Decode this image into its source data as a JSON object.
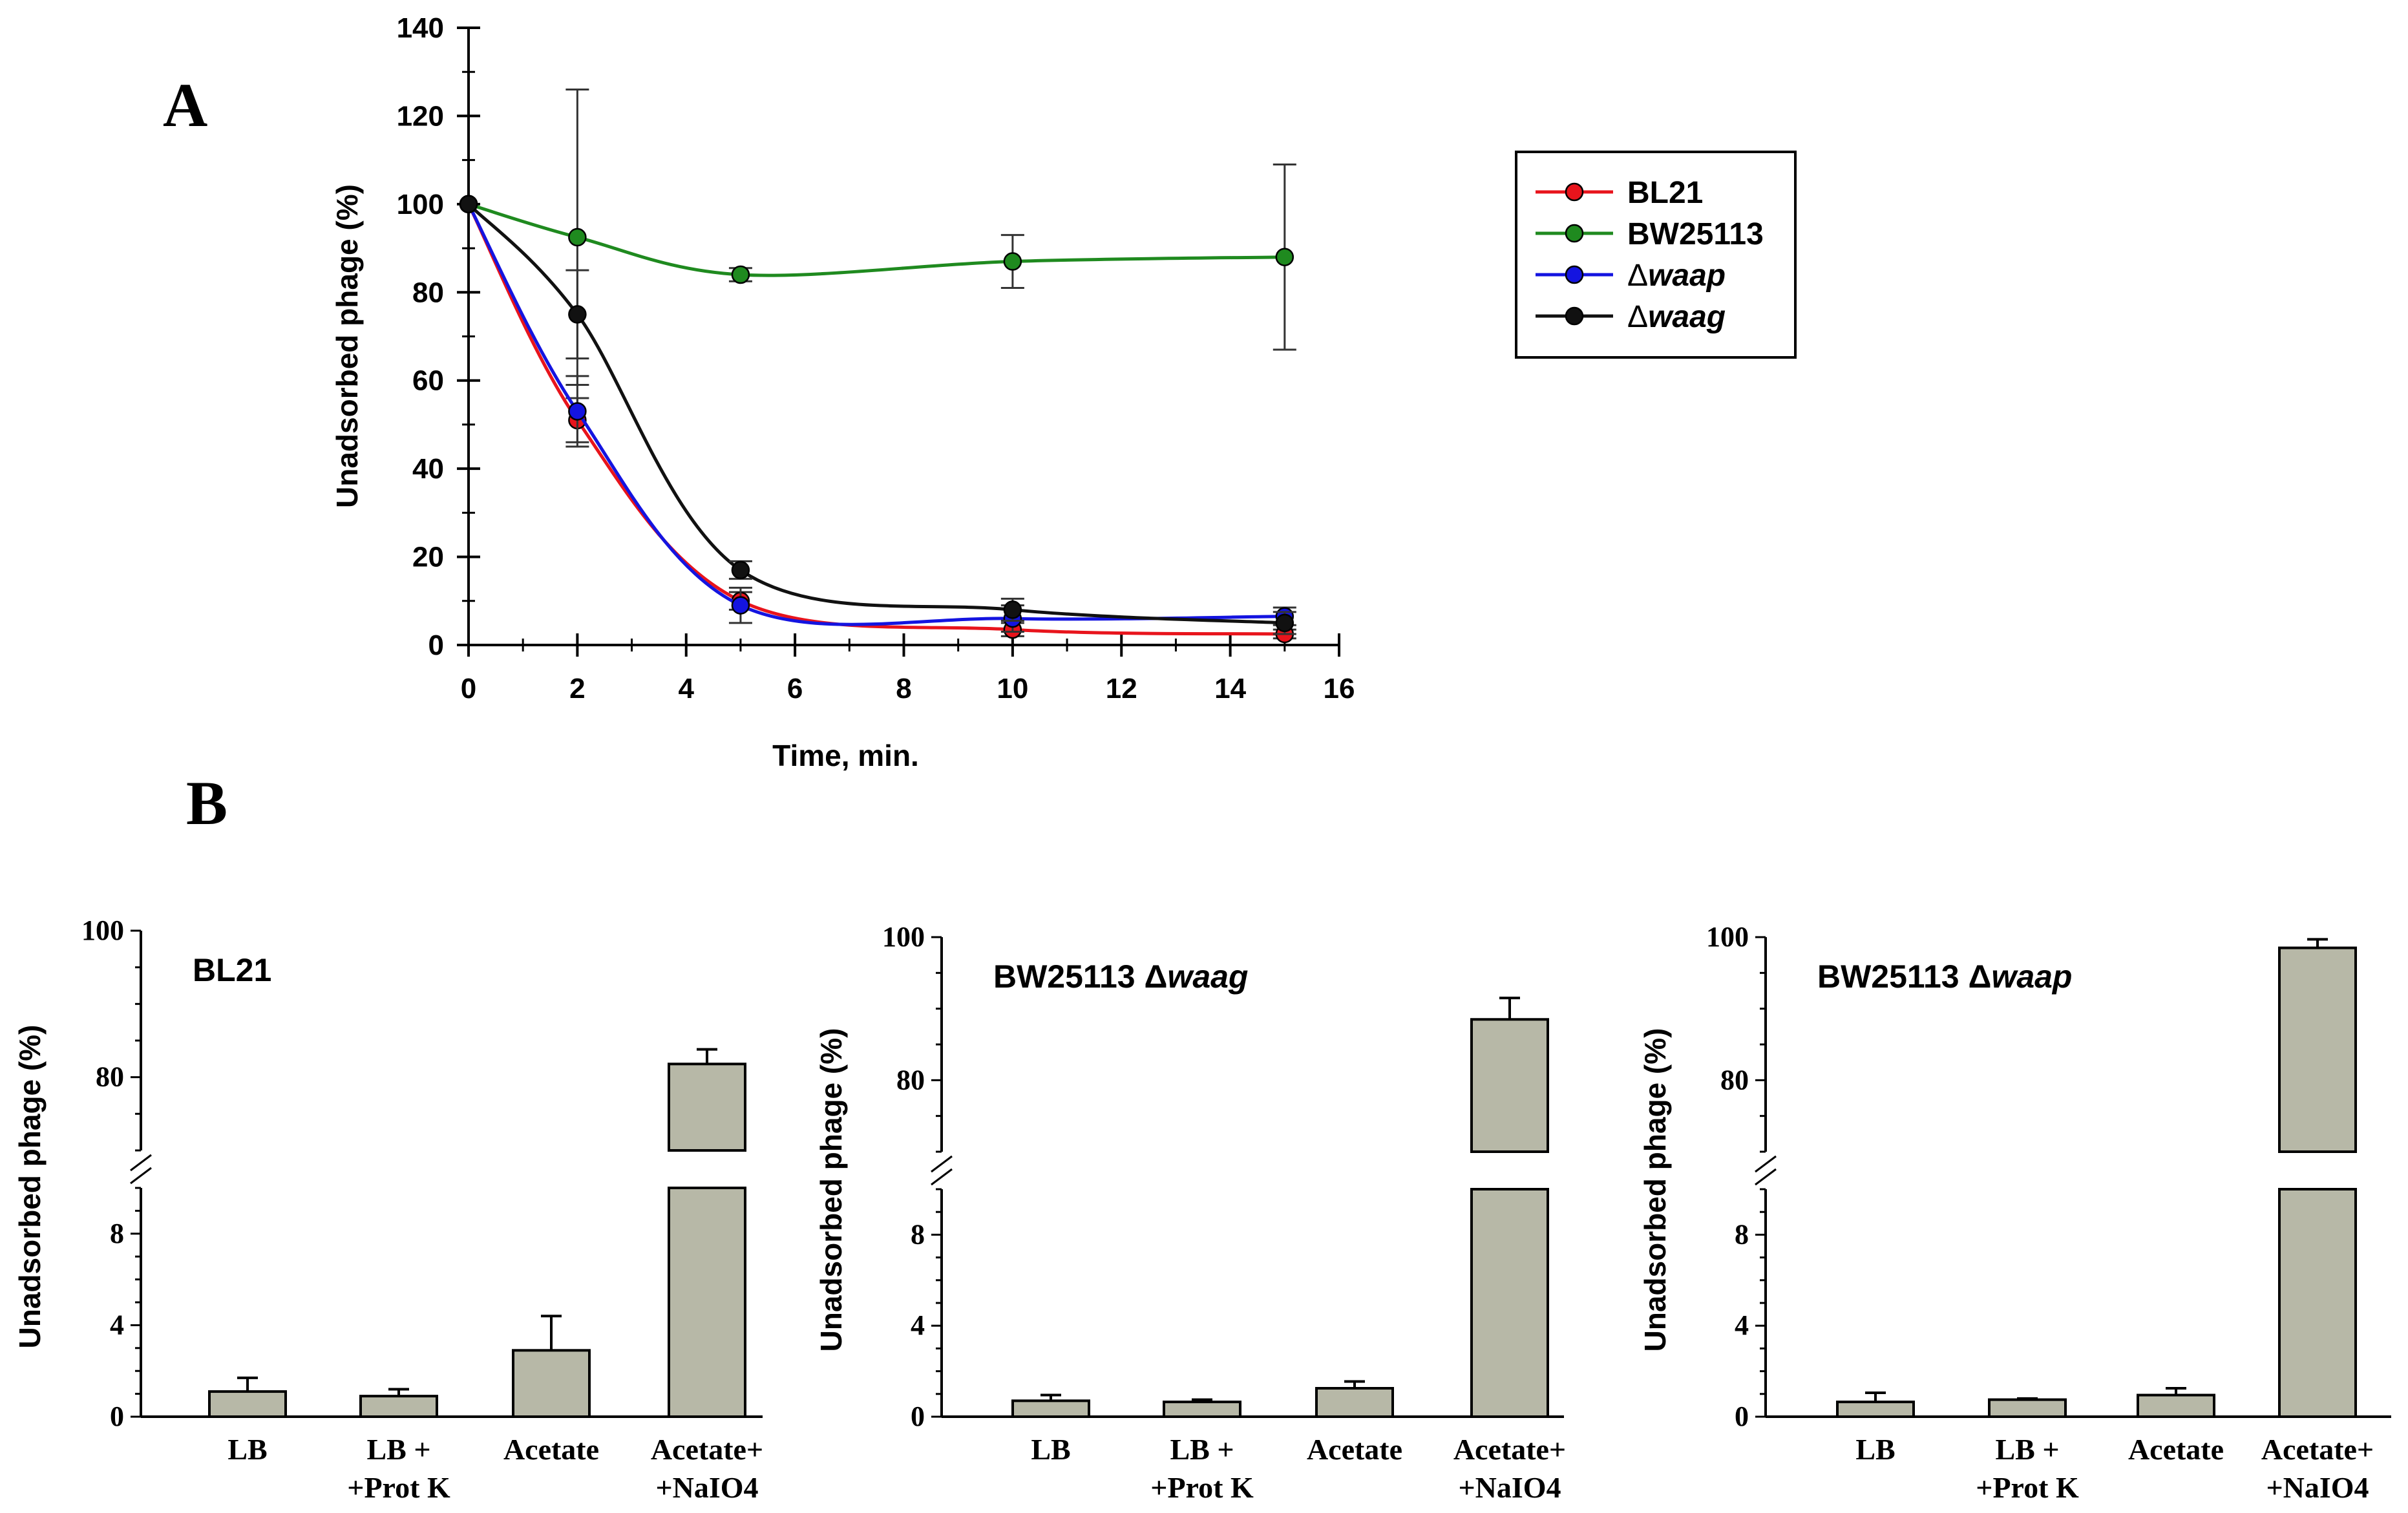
{
  "chart_data": [
    {
      "panel": "A",
      "type": "line",
      "title": "",
      "xlabel": "Time, min.",
      "ylabel": "Unadsorbed phage (%)",
      "xlim": [
        0,
        16
      ],
      "ylim": [
        0,
        140
      ],
      "x_ticks": [
        "0",
        "2",
        "4",
        "6",
        "8",
        "10",
        "12",
        "14",
        "16"
      ],
      "y_ticks": [
        "0",
        "20",
        "40",
        "60",
        "80",
        "100",
        "120",
        "140"
      ],
      "legend_position": "right",
      "series": [
        {
          "name": "BL21",
          "legend_prefix": "",
          "legend_name": "BL21",
          "italic": false,
          "color": "#e8141c",
          "x": [
            0,
            2,
            5,
            10,
            15
          ],
          "y": [
            100,
            51,
            10,
            3.5,
            2.5
          ],
          "err": [
            0,
            5,
            2,
            1.5,
            1
          ]
        },
        {
          "name": "BW25113",
          "legend_prefix": "",
          "legend_name": "BW25113",
          "italic": false,
          "color": "#1f8a1f",
          "x": [
            0,
            2,
            5,
            10,
            15
          ],
          "y": [
            100,
            92.5,
            84,
            87,
            88
          ],
          "err": [
            0,
            33.5,
            1.5,
            6,
            21
          ]
        },
        {
          "name": "Δwaap",
          "legend_prefix": "Δ",
          "legend_name": "waap",
          "italic": true,
          "color": "#1414e0",
          "x": [
            0,
            2,
            5,
            10,
            15
          ],
          "y": [
            100,
            53,
            9,
            6,
            6.5
          ],
          "err": [
            0,
            8,
            4,
            3,
            2
          ]
        },
        {
          "name": "Δwaag",
          "legend_prefix": "Δ",
          "legend_name": "waag",
          "italic": true,
          "color": "#111111",
          "x": [
            0,
            2,
            5,
            10,
            15
          ],
          "y": [
            100,
            75,
            17,
            8,
            5
          ],
          "err": [
            0,
            10,
            2,
            2.5,
            2.5
          ]
        }
      ]
    },
    {
      "panel": "B",
      "type": "bar",
      "title": "BL21",
      "title_prefix": "BL21",
      "title_italic": "",
      "ylabel": "Unadsorbed phage (%)",
      "categories": [
        [
          "LB",
          ""
        ],
        [
          "LB +",
          "+Prot K"
        ],
        [
          "Acetate",
          ""
        ],
        [
          "Acetate+",
          "+NaIO4"
        ]
      ],
      "values": [
        1.1,
        0.9,
        2.9,
        81.8
      ],
      "errors": [
        0.6,
        0.3,
        1.5,
        2.0
      ],
      "y_ticks_lower": [
        "0",
        "4",
        "8"
      ],
      "y_ticks_upper": [
        "80",
        "100"
      ],
      "broken_axis": {
        "lower": [
          0,
          10
        ],
        "upper": [
          70,
          100
        ]
      },
      "bar_color": "#b7b8a7"
    },
    {
      "panel": "B",
      "type": "bar",
      "title": "BW25113 Δwaag",
      "title_prefix": "BW25113 Δ",
      "title_italic": "waag",
      "ylabel": "Unadsorbed phage (%)",
      "categories": [
        [
          "LB",
          ""
        ],
        [
          "LB +",
          "+Prot K"
        ],
        [
          "Acetate",
          ""
        ],
        [
          "Acetate+",
          "+NaIO4"
        ]
      ],
      "values": [
        0.7,
        0.65,
        1.25,
        88.5
      ],
      "errors": [
        0.25,
        0.1,
        0.3,
        3.0
      ],
      "y_ticks_lower": [
        "0",
        "4",
        "8"
      ],
      "y_ticks_upper": [
        "80",
        "100"
      ],
      "broken_axis": {
        "lower": [
          0,
          10
        ],
        "upper": [
          70,
          100
        ]
      },
      "bar_color": "#b7b8a7"
    },
    {
      "panel": "B",
      "type": "bar",
      "title": "BW25113 Δwaap",
      "title_prefix": "BW25113 Δ",
      "title_italic": "waap",
      "ylabel": "Unadsorbed phage (%)",
      "categories": [
        [
          "LB",
          ""
        ],
        [
          "LB +",
          "+Prot K"
        ],
        [
          "Acetate",
          ""
        ],
        [
          "Acetate+",
          "+NaIO4"
        ]
      ],
      "values": [
        0.65,
        0.75,
        0.95,
        98.5
      ],
      "errors": [
        0.4,
        0.05,
        0.3,
        1.2
      ],
      "y_ticks_lower": [
        "0",
        "4",
        "8"
      ],
      "y_ticks_upper": [
        "80",
        "100"
      ],
      "broken_axis": {
        "lower": [
          0,
          10
        ],
        "upper": [
          70,
          100
        ]
      },
      "bar_color": "#b7b8a7"
    }
  ],
  "labels": {
    "panel_a": "A",
    "panel_b": "B"
  }
}
